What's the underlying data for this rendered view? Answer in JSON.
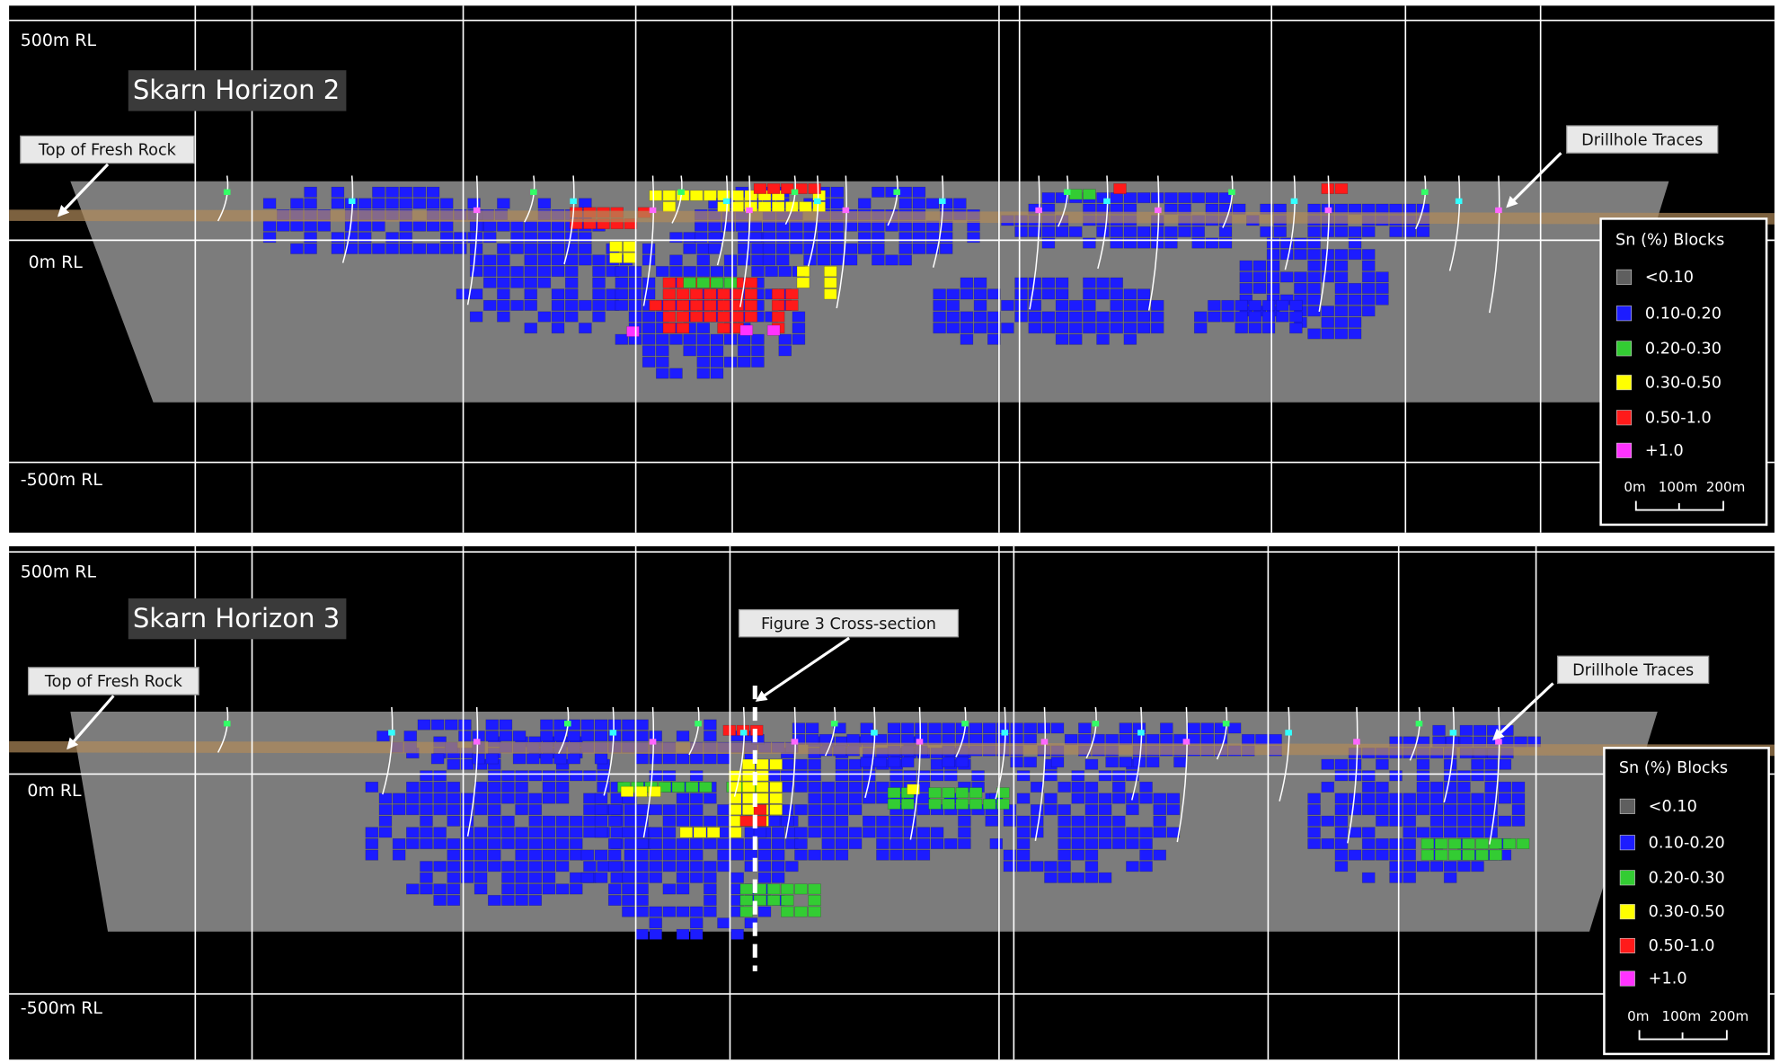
{
  "panels": [
    {
      "title": "Skarn Horizon 2",
      "rl_labels": [
        "500m RL",
        "0m RL",
        "-500m RL"
      ],
      "callouts": [
        "Top of Fresh Rock",
        "Drillhole Traces"
      ],
      "legend": {
        "title": "Sn (%) Blocks",
        "items": [
          {
            "label": "<0.10",
            "color": "#5f5f5f"
          },
          {
            "label": "0.10-0.20",
            "color": "#1c1cff"
          },
          {
            "label": "0.20-0.30",
            "color": "#33cc33"
          },
          {
            "label": "0.30-0.50",
            "color": "#ffff00"
          },
          {
            "label": "0.50-1.0",
            "color": "#ff1a1a"
          },
          {
            "label": "+1.0",
            "color": "#ff33ff"
          }
        ]
      },
      "scale_bar": [
        "0m",
        "100m",
        "200m"
      ]
    },
    {
      "title": "Skarn Horizon 3",
      "rl_labels": [
        "500m RL",
        "0m RL",
        "-500m RL"
      ],
      "callouts": [
        "Top of Fresh Rock",
        "Figure 3 Cross-section",
        "Drillhole Traces"
      ],
      "legend": {
        "title": "Sn (%) Blocks",
        "items": [
          {
            "label": "<0.10",
            "color": "#5f5f5f"
          },
          {
            "label": "0.10-0.20",
            "color": "#1c1cff"
          },
          {
            "label": "0.20-0.30",
            "color": "#33cc33"
          },
          {
            "label": "0.30-0.50",
            "color": "#ffff00"
          },
          {
            "label": "0.50-1.0",
            "color": "#ff1a1a"
          },
          {
            "label": "+1.0",
            "color": "#ff33ff"
          }
        ]
      },
      "scale_bar": [
        "0m",
        "100m",
        "200m"
      ]
    }
  ]
}
